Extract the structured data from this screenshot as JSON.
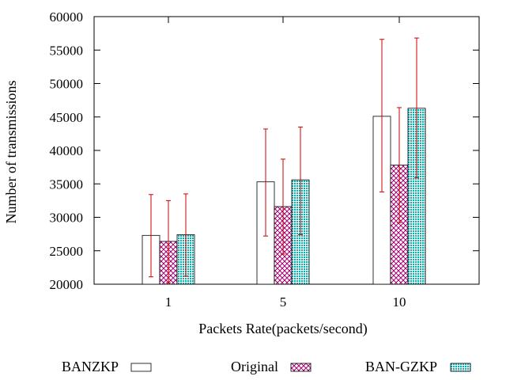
{
  "chart_data": {
    "type": "bar",
    "title": "",
    "xlabel": "Packets Rate(packets/second)",
    "ylabel": "Number of transmissions",
    "categories": [
      "1",
      "5",
      "10"
    ],
    "ylim": [
      20000,
      60000
    ],
    "yticks": [
      20000,
      25000,
      30000,
      35000,
      40000,
      45000,
      50000,
      55000,
      60000
    ],
    "error_bars": true,
    "error_bar_color": "#cc0000",
    "legend_position": "bottom",
    "series": [
      {
        "name": "BANZKP",
        "fill": "none",
        "values": [
          27300,
          35300,
          45100
        ],
        "err_low": [
          21100,
          27200,
          33800
        ],
        "err_high": [
          33400,
          43200,
          56600
        ]
      },
      {
        "name": "Original",
        "fill": "crosshatch",
        "color": "#a0006e",
        "values": [
          26400,
          31600,
          37800
        ],
        "err_low": [
          20200,
          24500,
          29200
        ],
        "err_high": [
          32500,
          38700,
          46400
        ]
      },
      {
        "name": "BAN-GZKP",
        "fill": "dotted",
        "color": "#00a0a0",
        "values": [
          27400,
          35600,
          46300
        ],
        "err_low": [
          21200,
          27400,
          35900
        ],
        "err_high": [
          33500,
          43500,
          56800
        ]
      }
    ]
  }
}
